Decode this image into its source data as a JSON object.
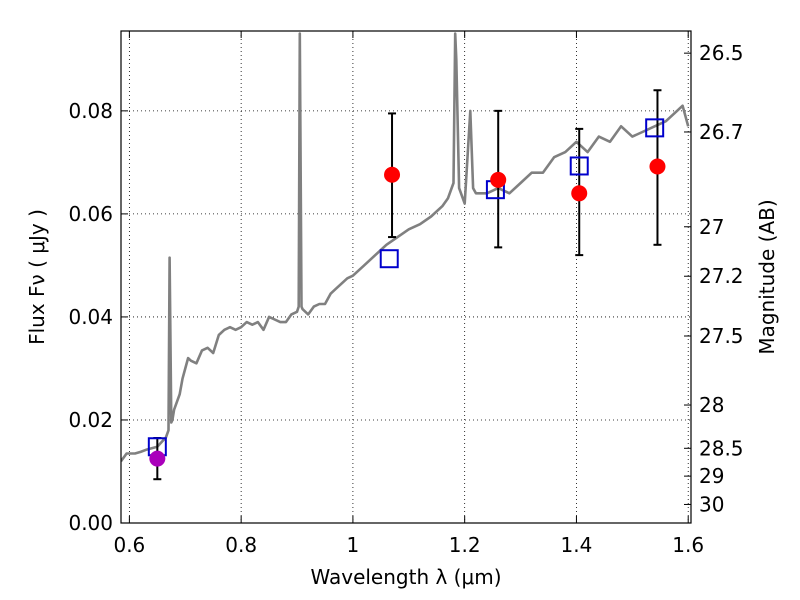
{
  "chart_data": {
    "type": "scatter",
    "title": "",
    "xlabel": "Wavelength  λ (μm)",
    "ylabel": "Flux  Fν  ( μJy )",
    "y2label": "Magnitude (AB)",
    "xlim": [
      0.585,
      1.605
    ],
    "ylim": [
      0.0,
      0.0955
    ],
    "grid": true,
    "x_ticks": [
      0.6,
      0.8,
      1.0,
      1.2,
      1.4,
      1.6
    ],
    "x_tick_labels": [
      "0.6",
      "0.8",
      "1",
      "1.2",
      "1.4",
      "1.6"
    ],
    "y_ticks": [
      0.0,
      0.02,
      0.04,
      0.06,
      0.08
    ],
    "y_tick_labels": [
      "0.00",
      "0.02",
      "0.04",
      "0.06",
      "0.08"
    ],
    "magnitude_ticks": [
      {
        "label": "26.5",
        "flux": 0.0912
      },
      {
        "label": "26.7",
        "flux": 0.0759
      },
      {
        "label": "27",
        "flux": 0.0575
      },
      {
        "label": "27.2",
        "flux": 0.0479
      },
      {
        "label": "27.5",
        "flux": 0.0363
      },
      {
        "label": "28",
        "flux": 0.0229
      },
      {
        "label": "28.5",
        "flux": 0.0145
      },
      {
        "label": "29",
        "flux": 0.0091
      },
      {
        "label": "30",
        "flux": 0.0036
      }
    ],
    "series": [
      {
        "kind": "line",
        "color": "#808080",
        "x": [
          0.585,
          0.595,
          0.6,
          0.61,
          0.62,
          0.63,
          0.64,
          0.65,
          0.66,
          0.665,
          0.67,
          0.672,
          0.675,
          0.677,
          0.68,
          0.69,
          0.695,
          0.7,
          0.705,
          0.71,
          0.72,
          0.73,
          0.74,
          0.75,
          0.76,
          0.77,
          0.78,
          0.79,
          0.8,
          0.81,
          0.82,
          0.83,
          0.84,
          0.85,
          0.86,
          0.87,
          0.88,
          0.89,
          0.9,
          0.903,
          0.905,
          0.908,
          0.91,
          0.92,
          0.93,
          0.94,
          0.95,
          0.96,
          0.97,
          0.98,
          0.99,
          1.0,
          1.02,
          1.04,
          1.06,
          1.08,
          1.1,
          1.12,
          1.14,
          1.16,
          1.17,
          1.18,
          1.183,
          1.185,
          1.19,
          1.2,
          1.21,
          1.215,
          1.22,
          1.24,
          1.26,
          1.28,
          1.3,
          1.32,
          1.34,
          1.36,
          1.38,
          1.4,
          1.42,
          1.44,
          1.46,
          1.48,
          1.5,
          1.52,
          1.54,
          1.56,
          1.58,
          1.59,
          1.6
        ],
        "y": [
          0.012,
          0.0135,
          0.0135,
          0.0135,
          0.0138,
          0.0142,
          0.0145,
          0.0148,
          0.016,
          0.0165,
          0.018,
          0.0515,
          0.0195,
          0.02,
          0.022,
          0.025,
          0.028,
          0.03,
          0.032,
          0.0315,
          0.031,
          0.0335,
          0.034,
          0.033,
          0.0365,
          0.0375,
          0.038,
          0.0375,
          0.038,
          0.039,
          0.0385,
          0.039,
          0.0375,
          0.04,
          0.0395,
          0.039,
          0.039,
          0.0405,
          0.041,
          0.042,
          0.095,
          0.042,
          0.0415,
          0.0405,
          0.042,
          0.0425,
          0.0425,
          0.0445,
          0.0455,
          0.0465,
          0.0475,
          0.048,
          0.05,
          0.052,
          0.054,
          0.0555,
          0.057,
          0.058,
          0.0595,
          0.0615,
          0.063,
          0.066,
          0.095,
          0.09,
          0.065,
          0.062,
          0.08,
          0.065,
          0.064,
          0.064,
          0.065,
          0.064,
          0.066,
          0.068,
          0.068,
          0.071,
          0.072,
          0.074,
          0.072,
          0.075,
          0.074,
          0.077,
          0.075,
          0.076,
          0.077,
          0.078,
          0.08,
          0.081,
          0.077
        ]
      },
      {
        "kind": "errorbar",
        "color": "#000000",
        "points": [
          {
            "x": 0.65,
            "lo": 0.0085,
            "hi": 0.0165
          },
          {
            "x": 1.07,
            "lo": 0.0555,
            "hi": 0.0795
          },
          {
            "x": 1.26,
            "lo": 0.0535,
            "hi": 0.08
          },
          {
            "x": 1.405,
            "lo": 0.052,
            "hi": 0.0765
          },
          {
            "x": 1.545,
            "lo": 0.054,
            "hi": 0.084
          }
        ]
      },
      {
        "kind": "square",
        "color": "#0000cc",
        "x": [
          0.65,
          1.065,
          1.255,
          1.405,
          1.54
        ],
        "y": [
          0.0148,
          0.0513,
          0.0647,
          0.0693,
          0.0767
        ]
      },
      {
        "kind": "dot",
        "color": "#ff0000",
        "x": [
          1.07,
          1.26,
          1.405,
          1.545
        ],
        "y": [
          0.0676,
          0.0666,
          0.064,
          0.0692
        ]
      },
      {
        "kind": "dot",
        "color": "#aa00bb",
        "x": [
          0.65
        ],
        "y": [
          0.0125
        ]
      }
    ]
  }
}
